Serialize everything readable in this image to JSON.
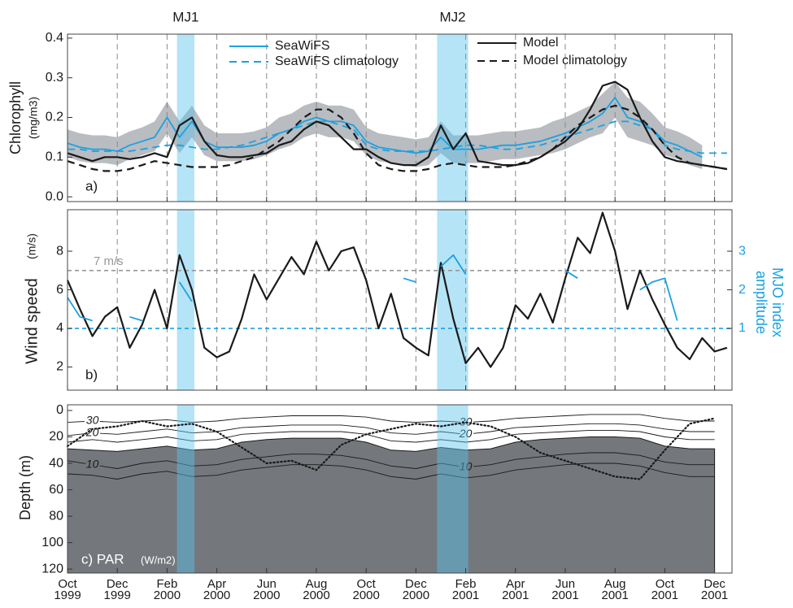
{
  "chart_data": [
    {
      "type": "line",
      "ylabel": "Chlorophyll",
      "ylabel_unit": "(mg/m3)",
      "panel_label": "a)",
      "ylim": [
        -0.012,
        0.41
      ],
      "yticks": [
        {
          "value": 0,
          "label": "0.0"
        },
        0.1,
        0.2,
        0.3,
        0.4
      ],
      "grid": true,
      "events": [
        {
          "label": "MJ1",
          "start": 4.4,
          "end": 5.1,
          "color": "#5cc4ee"
        },
        {
          "label": "MJ2",
          "start": 14.85,
          "end": 16.1,
          "color": "#5cc4ee"
        }
      ],
      "x": [
        0,
        0.5,
        1,
        1.5,
        2,
        2.5,
        3,
        3.5,
        4,
        4.5,
        5,
        5.5,
        6,
        6.5,
        7,
        7.5,
        8,
        8.5,
        9,
        9.5,
        10,
        10.5,
        11,
        11.5,
        12,
        12.5,
        13,
        13.5,
        14,
        14.5,
        15,
        15.5,
        16,
        16.5,
        17,
        17.5,
        18,
        18.5,
        19,
        19.5,
        20,
        20.5,
        21,
        21.5,
        22,
        22.5,
        23,
        23.5,
        24,
        24.5,
        25,
        25.5,
        26,
        26.5
      ],
      "band": {
        "color": "#b9bcc0",
        "high": [
          0.17,
          0.16,
          0.155,
          0.155,
          0.15,
          0.165,
          0.175,
          0.19,
          0.24,
          0.19,
          0.23,
          0.18,
          0.16,
          0.16,
          0.16,
          0.165,
          0.175,
          0.2,
          0.21,
          0.23,
          0.24,
          0.23,
          0.23,
          0.22,
          0.175,
          0.16,
          0.155,
          0.15,
          0.145,
          0.15,
          0.19,
          0.155,
          0.155,
          0.155,
          0.16,
          0.165,
          0.165,
          0.17,
          0.175,
          0.19,
          0.2,
          0.215,
          0.23,
          0.26,
          0.29,
          0.25,
          0.24,
          0.21,
          0.175,
          0.165,
          0.15,
          0.13,
          null,
          null
        ],
        "low": [
          0.1,
          0.09,
          0.085,
          0.085,
          0.08,
          0.095,
          0.105,
          0.115,
          0.16,
          0.11,
          0.15,
          0.105,
          0.09,
          0.09,
          0.09,
          0.095,
          0.105,
          0.12,
          0.13,
          0.15,
          0.16,
          0.15,
          0.15,
          0.14,
          0.105,
          0.09,
          0.085,
          0.08,
          0.075,
          0.08,
          0.11,
          0.085,
          0.085,
          0.085,
          0.09,
          0.095,
          0.095,
          0.1,
          0.105,
          0.11,
          0.12,
          0.135,
          0.15,
          0.16,
          0.2,
          0.15,
          0.14,
          0.13,
          0.105,
          0.095,
          0.08,
          0.07,
          null,
          null
        ]
      },
      "series": [
        {
          "name": "SeaWiFS",
          "color": "#1ba1e2",
          "dash": false,
          "values": [
            0.135,
            0.125,
            0.12,
            0.12,
            0.115,
            0.13,
            0.14,
            0.15,
            0.2,
            0.15,
            0.19,
            0.14,
            0.125,
            0.125,
            0.125,
            0.13,
            0.14,
            0.16,
            0.17,
            0.19,
            0.2,
            0.19,
            0.19,
            0.18,
            0.14,
            0.125,
            0.12,
            0.115,
            0.11,
            0.115,
            0.15,
            0.12,
            0.12,
            0.12,
            0.125,
            0.13,
            0.13,
            0.135,
            0.14,
            0.15,
            0.16,
            0.175,
            0.19,
            0.21,
            0.25,
            0.2,
            0.19,
            0.17,
            0.14,
            0.13,
            0.115,
            0.1,
            null,
            null
          ]
        },
        {
          "name": "SeaWiFS climatology",
          "color": "#1ba1e2",
          "dash": true,
          "values": [
            0.12,
            0.12,
            0.115,
            0.115,
            0.115,
            0.115,
            0.12,
            0.125,
            0.13,
            0.13,
            0.125,
            0.12,
            0.12,
            0.125,
            0.13,
            0.14,
            0.15,
            0.16,
            0.17,
            0.18,
            0.19,
            0.19,
            0.18,
            0.17,
            0.13,
            0.12,
            0.115,
            0.115,
            0.115,
            0.115,
            0.12,
            0.125,
            0.13,
            0.13,
            0.125,
            0.12,
            0.12,
            0.125,
            0.13,
            0.14,
            0.15,
            0.16,
            0.17,
            0.18,
            0.19,
            0.19,
            0.18,
            0.17,
            0.13,
            0.12,
            0.115,
            0.11,
            0.11,
            0.11
          ]
        },
        {
          "name": "Model",
          "color": "#1a1a1a",
          "dash": false,
          "values": [
            0.11,
            0.1,
            0.09,
            0.1,
            0.1,
            0.095,
            0.1,
            0.11,
            0.1,
            0.18,
            0.2,
            0.14,
            0.105,
            0.1,
            0.1,
            0.105,
            0.11,
            0.13,
            0.14,
            0.17,
            0.19,
            0.18,
            0.15,
            0.12,
            0.12,
            0.1,
            0.085,
            0.08,
            0.08,
            0.1,
            0.18,
            0.12,
            0.16,
            0.09,
            0.085,
            0.08,
            0.08,
            0.085,
            0.1,
            0.12,
            0.14,
            0.17,
            0.22,
            0.28,
            0.29,
            0.27,
            0.2,
            0.14,
            0.1,
            0.09,
            0.085,
            0.08,
            0.075,
            0.07
          ]
        },
        {
          "name": "Model climatology",
          "color": "#1a1a1a",
          "dash": true,
          "values": [
            0.09,
            0.08,
            0.07,
            0.065,
            0.065,
            0.07,
            0.08,
            0.09,
            0.085,
            0.08,
            0.075,
            0.075,
            0.075,
            0.08,
            0.09,
            0.1,
            0.12,
            0.14,
            0.17,
            0.2,
            0.22,
            0.22,
            0.2,
            0.16,
            0.11,
            0.08,
            0.07,
            0.065,
            0.065,
            0.07,
            0.08,
            0.085,
            0.08,
            0.075,
            0.075,
            0.075,
            0.08,
            0.09,
            0.1,
            0.12,
            0.15,
            0.18,
            0.2,
            0.22,
            0.23,
            0.22,
            0.2,
            0.17,
            0.13,
            0.1,
            0.085,
            0.08,
            0.075,
            0.07
          ]
        }
      ]
    },
    {
      "type": "line",
      "ylabel": "Wind speed",
      "ylabel_unit": "(m/s)",
      "panel_label": "b)",
      "ylim": [
        0.8,
        10.15
      ],
      "yticks": [
        2,
        4,
        6,
        8
      ],
      "y2lim": [
        -0.6,
        4.075
      ],
      "y2ticks": [
        1,
        2,
        3
      ],
      "y2label": "MJO index amplitude",
      "y2color": "#1ba1e2",
      "grid": true,
      "x": [
        0,
        0.5,
        1,
        1.5,
        2,
        2.5,
        3,
        3.5,
        4,
        4.5,
        5,
        5.5,
        6,
        6.5,
        7,
        7.5,
        8,
        8.5,
        9,
        9.5,
        10,
        10.5,
        11,
        11.5,
        12,
        12.5,
        13,
        13.5,
        14,
        14.5,
        15,
        15.5,
        16,
        16.5,
        17,
        17.5,
        18,
        18.5,
        19,
        19.5,
        20,
        20.5,
        21,
        21.5,
        22,
        22.5,
        23,
        23.5,
        24,
        24.5,
        25,
        25.5,
        26,
        26.5
      ],
      "hlines": [
        {
          "value": 7,
          "label": "7 m/s",
          "color": "#999999"
        },
        {
          "value": 1,
          "axis": "y2",
          "color": "#1ba1e2"
        }
      ],
      "series": [
        {
          "color": "#1a1a1a",
          "values": [
            6.5,
            5.0,
            3.6,
            4.6,
            5.1,
            3.0,
            4.2,
            6.0,
            4.0,
            7.8,
            6.0,
            3.0,
            2.5,
            2.8,
            4.5,
            6.8,
            5.5,
            6.6,
            7.7,
            6.8,
            8.5,
            7.0,
            8.0,
            8.2,
            6.5,
            4.0,
            5.8,
            3.5,
            3.0,
            2.6,
            7.4,
            4.5,
            2.2,
            3.0,
            2.0,
            3.0,
            5.2,
            4.5,
            5.8,
            4.3,
            6.6,
            8.7,
            7.9,
            10.0,
            8.0,
            5.0,
            7.0,
            5.5,
            4.2,
            3.0,
            2.4,
            3.5,
            2.8,
            3.0
          ]
        },
        {
          "axis": "y2",
          "color": "#1ba1e2",
          "values": [
            1.8,
            1.3,
            1.2,
            null,
            null,
            1.3,
            1.2,
            null,
            null,
            2.2,
            1.7,
            null,
            null,
            1.3,
            null,
            null,
            null,
            null,
            null,
            null,
            null,
            null,
            null,
            null,
            null,
            null,
            null,
            2.3,
            2.2,
            null,
            2.6,
            2.9,
            2.4,
            null,
            null,
            null,
            null,
            null,
            null,
            null,
            2.5,
            2.3,
            null,
            1.5,
            null,
            null,
            2.0,
            2.2,
            2.3,
            1.2,
            null,
            null,
            null,
            null
          ]
        }
      ]
    },
    {
      "type": "contour",
      "ylabel": "Depth (m)",
      "panel_label": "c) PAR",
      "panel_unit": "(W/m2)",
      "ylim": [
        123,
        -4.3
      ],
      "yticks": [
        0,
        20,
        40,
        60,
        80,
        100,
        120
      ],
      "xlim": [
        0,
        26.7
      ],
      "xticks": [
        {
          "value": 0,
          "label": "Oct 1999"
        },
        {
          "value": 2,
          "label": "Dec 1999"
        },
        {
          "value": 4,
          "label": "Feb 2000"
        },
        {
          "value": 6,
          "label": "Apr 2000"
        },
        {
          "value": 8,
          "label": "Jun 2000"
        },
        {
          "value": 10,
          "label": "Aug 2000"
        },
        {
          "value": 12,
          "label": "Oct 2000"
        },
        {
          "value": 14,
          "label": "Dec 2000"
        },
        {
          "value": 16,
          "label": "Feb 2001"
        },
        {
          "value": 18,
          "label": "Apr 2001"
        },
        {
          "value": 20,
          "label": "Jun 2001"
        },
        {
          "value": 22,
          "label": "Aug 2001"
        },
        {
          "value": 24,
          "label": "Oct 2001"
        },
        {
          "value": 26,
          "label": "Dec 2001"
        }
      ],
      "x": [
        0,
        1,
        2,
        3,
        4,
        5,
        6,
        7,
        8,
        9,
        10,
        11,
        12,
        13,
        14,
        15,
        16,
        17,
        18,
        19,
        20,
        21,
        22,
        23,
        24,
        25,
        26
      ],
      "fill": {
        "color": "#74787d",
        "top": [
          29,
          30,
          31,
          29,
          27,
          30,
          29,
          24,
          22,
          21,
          21,
          21,
          24,
          30,
          31,
          28,
          30,
          29,
          24,
          22,
          21,
          20,
          20,
          21,
          27,
          29,
          29
        ]
      },
      "contours": [
        {
          "label": "30",
          "values": [
            9,
            8,
            9,
            8,
            7,
            9,
            8,
            6,
            5,
            4,
            4,
            4,
            5,
            8,
            9,
            8,
            9,
            8,
            6,
            5,
            4,
            3,
            3,
            3,
            6,
            8,
            8
          ]
        },
        {
          "label": "20",
          "values": [
            19,
            17,
            18,
            16,
            14,
            17,
            16,
            13,
            12,
            11,
            11,
            11,
            13,
            17,
            18,
            16,
            18,
            16,
            13,
            12,
            11,
            10,
            10,
            11,
            14,
            16,
            16
          ]
        },
        {
          "values": [
            24,
            22,
            24,
            22,
            20,
            23,
            22,
            18,
            17,
            16,
            16,
            16,
            18,
            23,
            24,
            22,
            24,
            22,
            18,
            17,
            16,
            15,
            15,
            16,
            20,
            22,
            22
          ]
        },
        {
          "label": "10",
          "values": [
            38,
            41,
            44,
            40,
            38,
            42,
            41,
            37,
            35,
            33,
            33,
            34,
            37,
            42,
            44,
            40,
            43,
            41,
            37,
            35,
            33,
            32,
            32,
            34,
            39,
            41,
            41
          ]
        },
        {
          "values": [
            48,
            49,
            52,
            48,
            46,
            50,
            49,
            45,
            43,
            41,
            41,
            42,
            45,
            50,
            52,
            48,
            51,
            49,
            45,
            43,
            41,
            40,
            40,
            42,
            47,
            50,
            50
          ]
        }
      ],
      "mld": {
        "color": "#1a1a1a",
        "values": [
          27,
          14,
          12,
          8,
          12,
          10,
          16,
          28,
          40,
          38,
          45,
          26,
          18,
          14,
          10,
          12,
          9,
          12,
          20,
          32,
          38,
          44,
          50,
          52,
          30,
          10,
          6
        ]
      }
    }
  ]
}
